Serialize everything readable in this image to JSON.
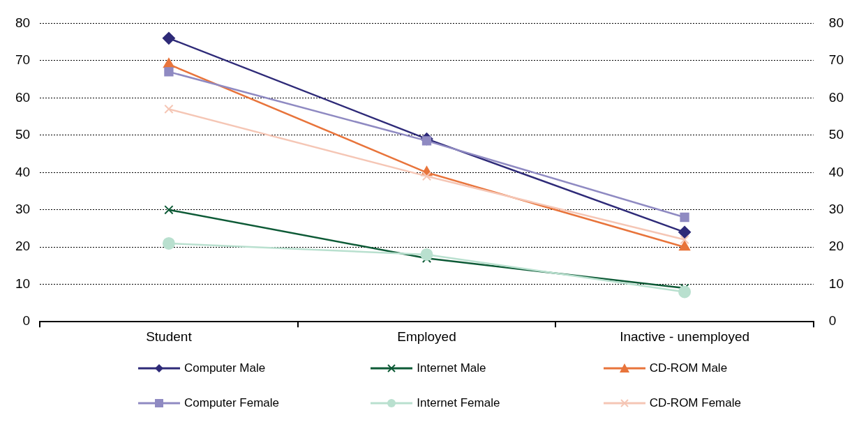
{
  "chart_data": {
    "type": "line",
    "categories": [
      "Student",
      "Employed",
      "Inactive - unemployed"
    ],
    "ylim": [
      0,
      80
    ],
    "yticks": [
      0,
      10,
      20,
      30,
      40,
      50,
      60,
      70,
      80
    ],
    "y2lim": [
      0,
      80
    ],
    "y2ticks": [
      0,
      10,
      20,
      30,
      40,
      50,
      60,
      70,
      80
    ],
    "grid": "y",
    "legend": "bottom",
    "line_style": "solid",
    "series": [
      {
        "name": "Computer Male",
        "color": "#2e2a78",
        "marker": "diamond",
        "values": [
          76,
          49,
          24
        ]
      },
      {
        "name": "Internet Male",
        "color": "#0d5a36",
        "marker": "cross",
        "values": [
          30,
          17,
          9
        ]
      },
      {
        "name": "CD-ROM Male",
        "color": "#e8743b",
        "marker": "triangle",
        "values": [
          69,
          40,
          20
        ]
      },
      {
        "name": "Computer Female",
        "color": "#8f8ac2",
        "marker": "square",
        "values": [
          67,
          48.5,
          28
        ]
      },
      {
        "name": "Internet Female",
        "color": "#b9e0cf",
        "marker": "circle",
        "values": [
          21,
          18,
          8
        ]
      },
      {
        "name": "CD-ROM Female",
        "color": "#f5c6b5",
        "marker": "cross",
        "values": [
          57,
          39,
          22
        ]
      }
    ]
  }
}
